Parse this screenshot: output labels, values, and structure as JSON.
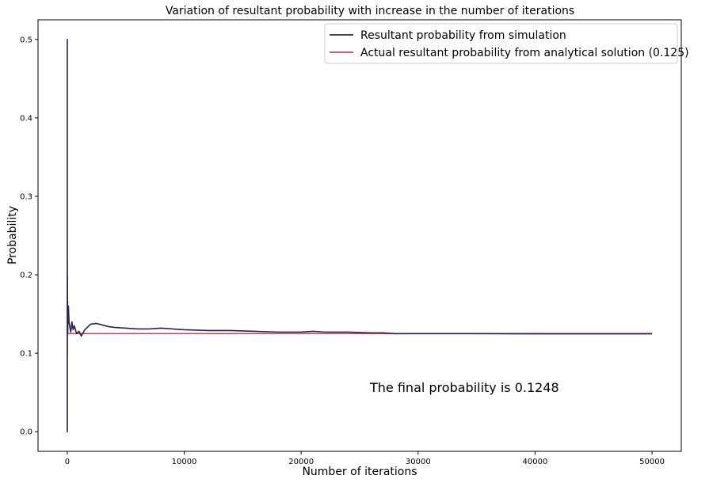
{
  "chart_data": {
    "type": "line",
    "title": "Variation of resultant probability with increase in the number of iterations",
    "xlabel": "Number of iterations",
    "ylabel": "Probability",
    "xlim": [
      -2500,
      52500
    ],
    "ylim": [
      -0.025,
      0.525
    ],
    "xticks": [
      0,
      10000,
      20000,
      30000,
      40000,
      50000
    ],
    "yticks": [
      0.0,
      0.1,
      0.2,
      0.3,
      0.4,
      0.5
    ],
    "xtick_labels": [
      "0",
      "10000",
      "20000",
      "30000",
      "40000",
      "50000"
    ],
    "ytick_labels": [
      "0.0",
      "0.1",
      "0.2",
      "0.3",
      "0.4",
      "0.5"
    ],
    "grid": false,
    "legend_position": "top-right",
    "series": [
      {
        "name": "Resultant probability from simulation",
        "color": "#2b2348",
        "x": [
          1,
          2,
          3,
          4,
          6,
          8,
          10,
          14,
          20,
          30,
          40,
          60,
          80,
          100,
          150,
          200,
          300,
          400,
          500,
          600,
          800,
          1000,
          1200,
          1500,
          2000,
          2500,
          3000,
          3500,
          4000,
          5000,
          6000,
          7000,
          8000,
          9000,
          10000,
          12000,
          14000,
          16000,
          18000,
          20000,
          21000,
          22000,
          24000,
          26000,
          27000,
          28000,
          30000,
          32000,
          35000,
          40000,
          45000,
          50000
        ],
        "y": [
          0.0,
          0.5,
          0.0,
          0.25,
          0.0,
          0.22,
          0.1,
          0.2,
          0.15,
          0.167,
          0.125,
          0.15,
          0.138,
          0.16,
          0.14,
          0.135,
          0.127,
          0.14,
          0.13,
          0.135,
          0.125,
          0.128,
          0.122,
          0.13,
          0.137,
          0.138,
          0.136,
          0.134,
          0.133,
          0.132,
          0.131,
          0.131,
          0.132,
          0.131,
          0.13,
          0.129,
          0.129,
          0.128,
          0.127,
          0.127,
          0.128,
          0.127,
          0.127,
          0.126,
          0.126,
          0.125,
          0.125,
          0.125,
          0.125,
          0.1248,
          0.1248,
          0.1248
        ]
      },
      {
        "name": "Actual resultant probability from analytical solution (0.125)",
        "color": "#c0486a",
        "x": [
          0,
          50000
        ],
        "y": [
          0.125,
          0.125
        ]
      }
    ],
    "annotations": [
      {
        "text": "The final probability is 0.1248",
        "x": 25000,
        "y": 0.05
      }
    ]
  }
}
